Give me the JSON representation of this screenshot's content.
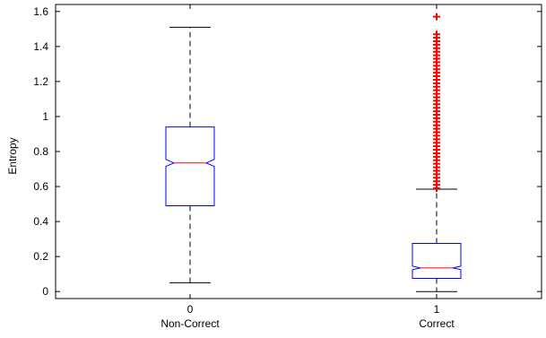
{
  "chart_data": {
    "type": "box",
    "title": "",
    "xlabel": "",
    "ylabel": "Entropy",
    "ylim": [
      -0.04,
      1.64
    ],
    "yticks": [
      0,
      0.2,
      0.4,
      0.6,
      0.8,
      1,
      1.2,
      1.4,
      1.6
    ],
    "ytick_labels": [
      "0",
      "0.2",
      "0.4",
      "0.6",
      "0.8",
      "1",
      "1.2",
      "1.4",
      "1.6"
    ],
    "notched": true,
    "grid": false,
    "colors": {
      "box": "#0000ff",
      "median": "#ff0000",
      "whisker": "#000000",
      "outlier": "#ff0000",
      "axis": "#000000"
    },
    "categories": [
      {
        "tick": "0",
        "label": "Non-Correct",
        "min": 0.05,
        "q1": 0.49,
        "median": 0.735,
        "q3": 0.94,
        "max": 1.51,
        "notch_low": 0.715,
        "notch_high": 0.755,
        "outliers": []
      },
      {
        "tick": "1",
        "label": "Correct",
        "min": 0.0,
        "q1": 0.075,
        "median": 0.135,
        "q3": 0.275,
        "max": 0.585,
        "notch_low": 0.125,
        "notch_high": 0.145,
        "outliers": [
          0.59,
          0.61,
          0.63,
          0.65,
          0.67,
          0.69,
          0.71,
          0.73,
          0.75,
          0.77,
          0.79,
          0.81,
          0.83,
          0.85,
          0.87,
          0.89,
          0.91,
          0.93,
          0.95,
          0.97,
          0.99,
          1.01,
          1.03,
          1.05,
          1.07,
          1.09,
          1.11,
          1.13,
          1.15,
          1.17,
          1.19,
          1.21,
          1.23,
          1.25,
          1.27,
          1.29,
          1.31,
          1.33,
          1.35,
          1.37,
          1.39,
          1.41,
          1.43,
          1.45,
          1.47,
          1.57
        ]
      }
    ]
  }
}
